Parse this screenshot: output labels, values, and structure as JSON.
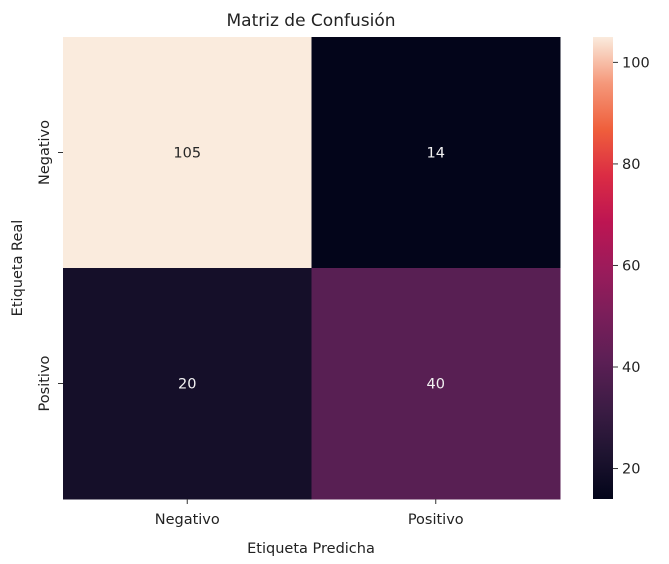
{
  "chart_data": {
    "type": "heatmap",
    "title": "Matriz de Confusión",
    "xlabel": "Etiqueta Predicha",
    "ylabel": "Etiqueta Real",
    "x_categories": [
      "Negativo",
      "Positivo"
    ],
    "y_categories": [
      "Negativo",
      "Positivo"
    ],
    "matrix": [
      [
        105,
        14
      ],
      [
        20,
        40
      ]
    ],
    "colormap": "rocket",
    "color_range": [
      14,
      105
    ],
    "colorbar_ticks": [
      20,
      40,
      60,
      80,
      100
    ],
    "colorbar_tick_labels": [
      "20",
      "40",
      "60",
      "80",
      "100"
    ],
    "colorbar_position": "right"
  }
}
